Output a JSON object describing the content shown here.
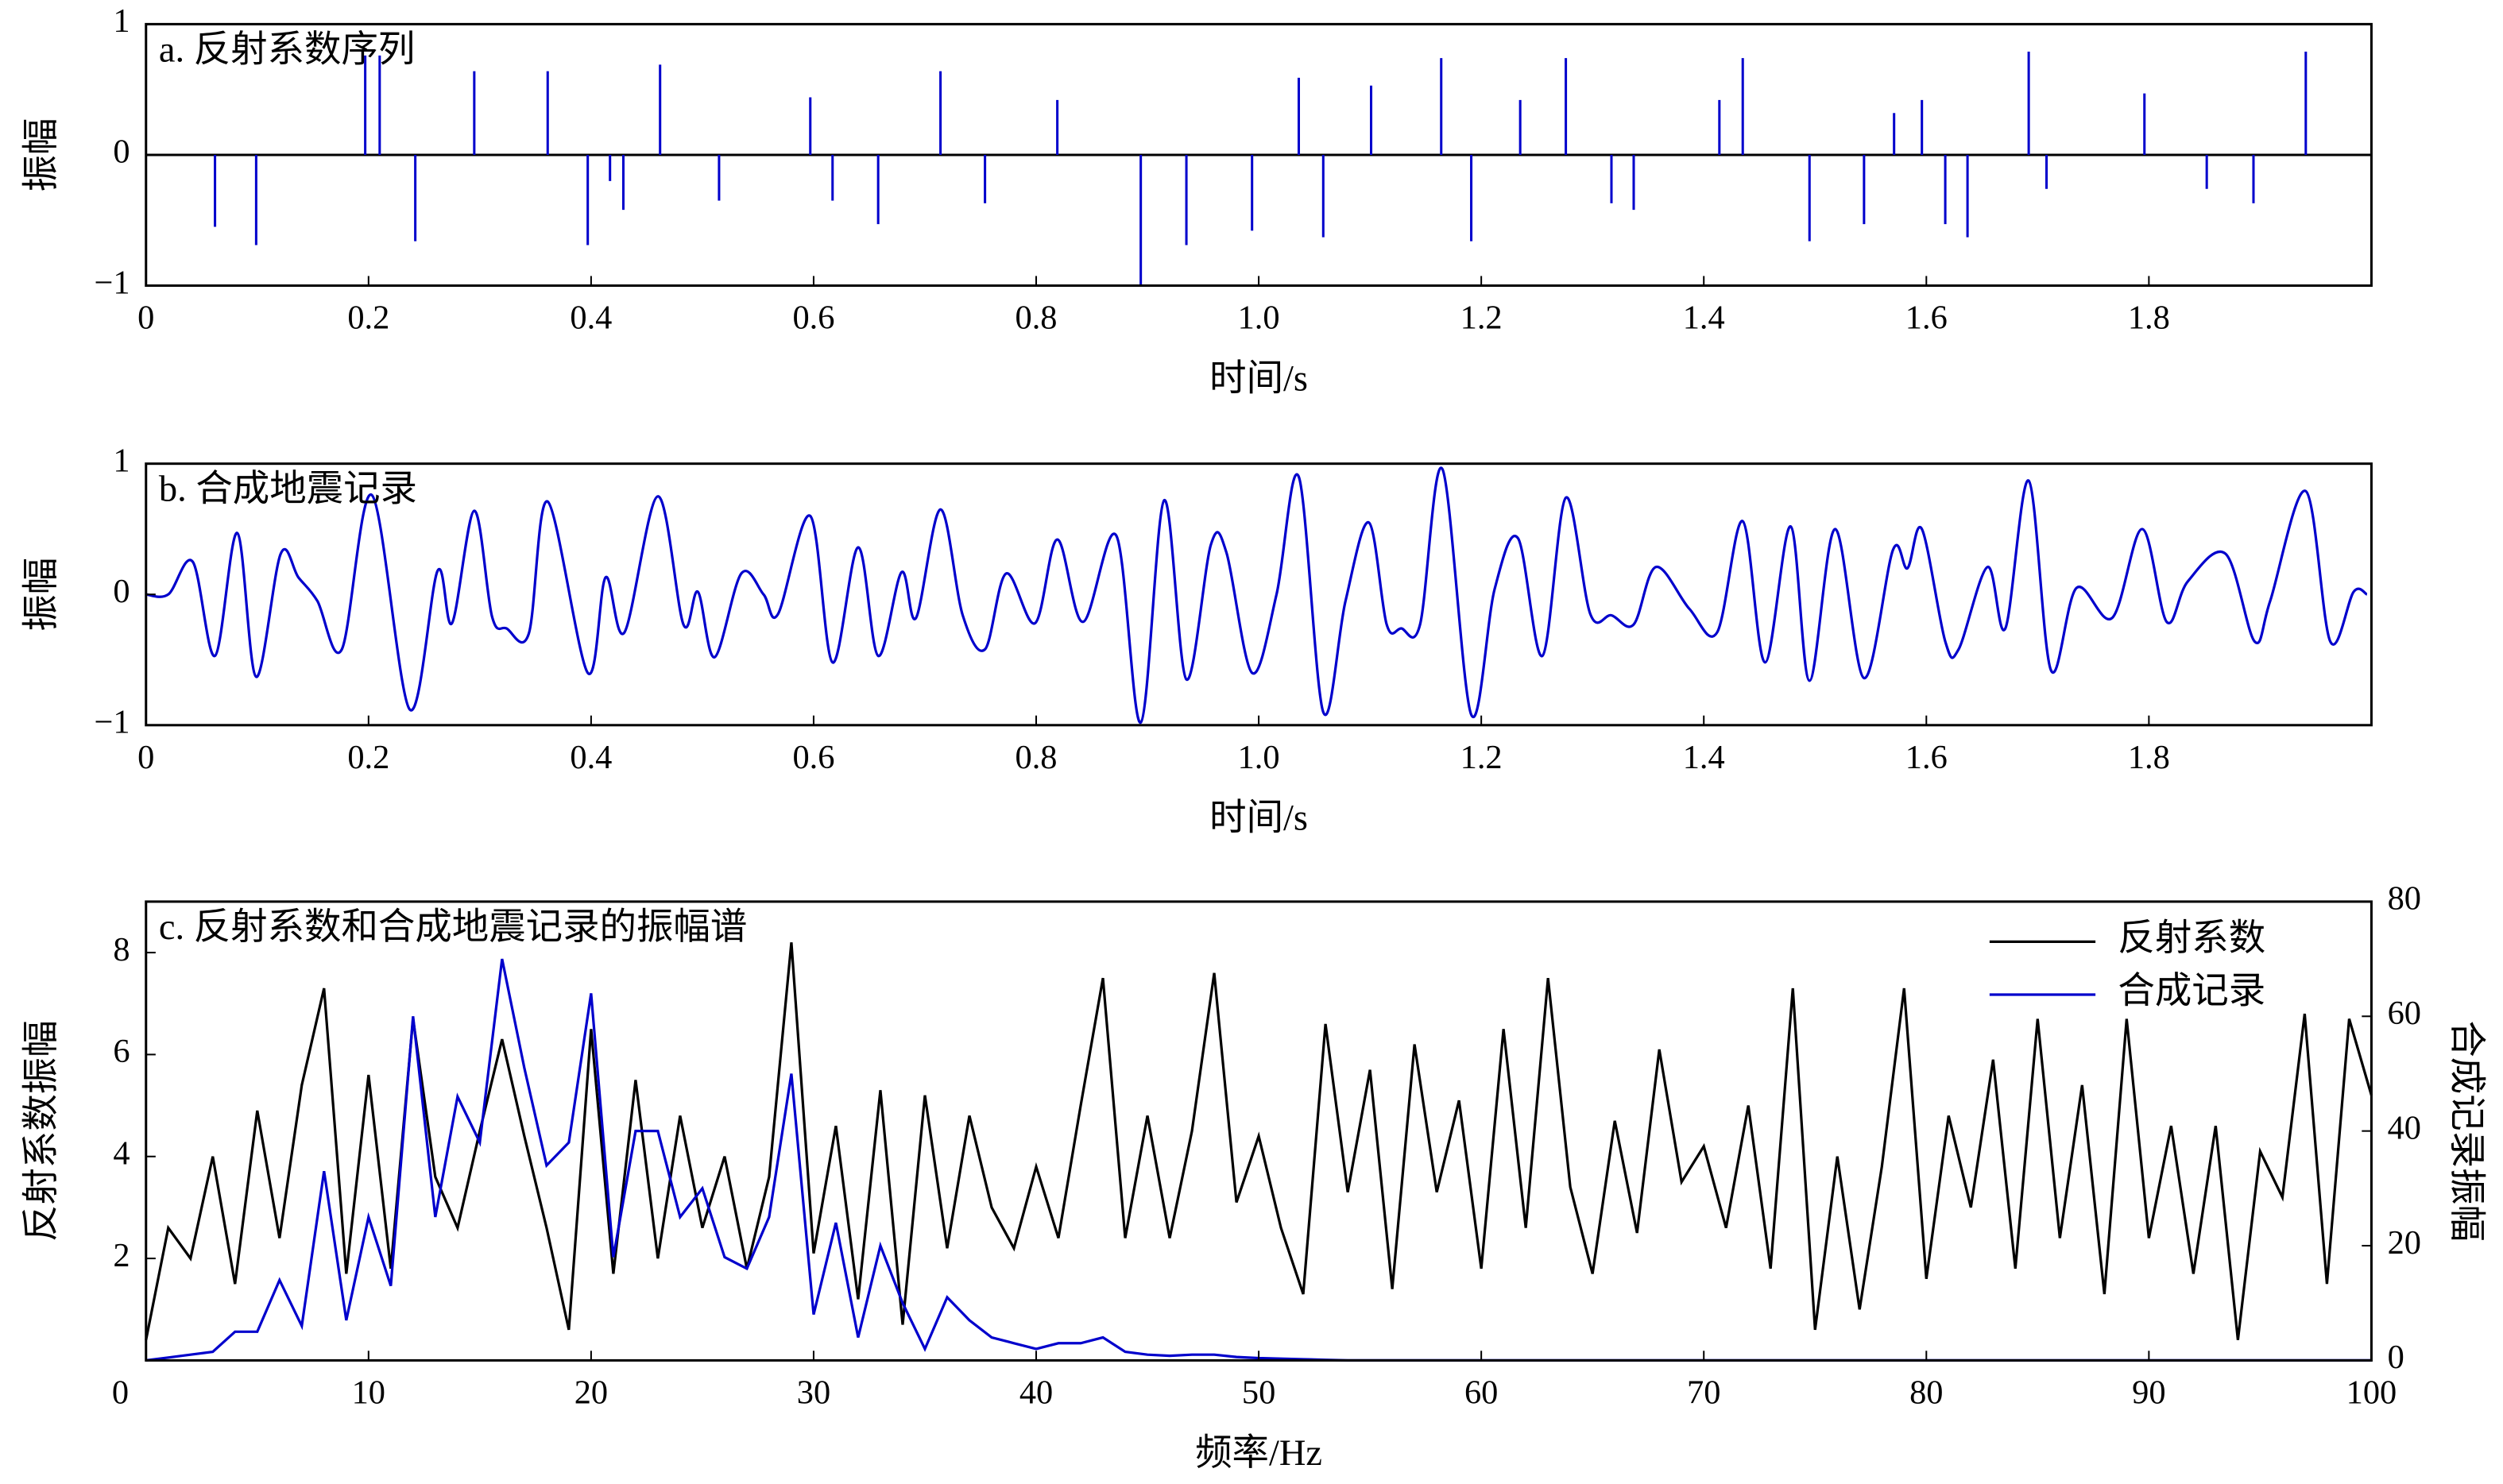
{
  "chart_data": [
    {
      "type": "stem",
      "title": "a. 反射系数序列",
      "xlabel": "时间/s",
      "ylabel": "振幅",
      "color": "#0000cc",
      "x": [
        0.062,
        0.099,
        0.197,
        0.21,
        0.242,
        0.295,
        0.361,
        0.397,
        0.417,
        0.429,
        0.462,
        0.515,
        0.597,
        0.617,
        0.658,
        0.714,
        0.754,
        0.819,
        0.894,
        0.935,
        0.994,
        1.036,
        1.058,
        1.101,
        1.164,
        1.191,
        1.235,
        1.276,
        1.317,
        1.337,
        1.414,
        1.435,
        1.495,
        1.544,
        1.571,
        1.596,
        1.617,
        1.637,
        1.692,
        1.708,
        1.796,
        1.852,
        1.894,
        1.941
      ],
      "values": [
        -0.55,
        -0.69,
        0.76,
        0.76,
        -0.66,
        0.64,
        0.64,
        -0.69,
        -0.2,
        -0.42,
        0.69,
        -0.35,
        0.44,
        -0.35,
        -0.53,
        0.64,
        -0.37,
        0.42,
        -1,
        -0.69,
        -0.58,
        0.59,
        -0.63,
        0.53,
        0.74,
        -0.66,
        0.42,
        0.74,
        -0.37,
        -0.42,
        0.42,
        0.74,
        -0.66,
        -0.53,
        0.32,
        0.42,
        -0.53,
        -0.63,
        0.79,
        -0.26,
        0.47,
        -0.26,
        -0.37,
        0.79
      ],
      "xlim": [
        0,
        2
      ],
      "xticks": [
        0,
        0.2,
        0.4,
        0.6,
        0.8,
        {
          "value": 1,
          "label": "1.0"
        },
        1.2,
        1.4,
        1.6,
        1.8
      ],
      "ylim": [
        -1,
        1
      ],
      "yticks": [
        {
          "value": -1,
          "label": "−1"
        },
        0,
        1
      ]
    },
    {
      "type": "line",
      "title": "b. 合成地震记录",
      "xlabel": "时间/s",
      "ylabel": "振幅",
      "color": "#0000cc",
      "x": [
        0,
        0.02,
        0.042,
        0.062,
        0.082,
        0.099,
        0.121,
        0.137,
        0.154,
        0.176,
        0.203,
        0.237,
        0.262,
        0.275,
        0.295,
        0.311,
        0.324,
        0.344,
        0.361,
        0.397,
        0.413,
        0.43,
        0.46,
        0.483,
        0.496,
        0.511,
        0.535,
        0.555,
        0.568,
        0.597,
        0.617,
        0.64,
        0.658,
        0.679,
        0.692,
        0.714,
        0.734,
        0.754,
        0.773,
        0.799,
        0.819,
        0.842,
        0.872,
        0.894,
        0.915,
        0.935,
        0.957,
        0.971,
        0.994,
        1.016,
        1.036,
        1.058,
        1.078,
        1.099,
        1.115,
        1.128,
        1.145,
        1.165,
        1.191,
        1.212,
        1.233,
        1.255,
        1.276,
        1.298,
        1.317,
        1.337,
        1.357,
        1.387,
        1.412,
        1.435,
        1.455,
        1.478,
        1.495,
        1.518,
        1.544,
        1.57,
        1.583,
        1.596,
        1.617,
        1.629,
        1.655,
        1.671,
        1.692,
        1.712,
        1.735,
        1.767,
        1.794,
        1.816,
        1.835,
        1.869,
        1.895,
        1.909,
        1.941,
        1.963,
        1.984,
        1.996
      ],
      "values": [
        0,
        0,
        0.25,
        -0.47,
        0.47,
        -0.63,
        0.31,
        0.13,
        -0.05,
        -0.42,
        0.76,
        -0.88,
        0.18,
        -0.22,
        0.64,
        -0.17,
        -0.26,
        -0.3,
        0.71,
        -0.6,
        0.13,
        -0.29,
        0.75,
        -0.23,
        0.02,
        -0.48,
        0.16,
        0,
        -0.15,
        0.6,
        -0.52,
        0.36,
        -0.47,
        0.17,
        -0.18,
        0.65,
        -0.16,
        -0.42,
        0.16,
        -0.22,
        0.42,
        -0.21,
        0.45,
        -0.98,
        0.72,
        -0.65,
        0.38,
        0.32,
        -0.6,
        0,
        0.9,
        -0.9,
        -0.05,
        0.55,
        -0.23,
        -0.26,
        -0.23,
        0.96,
        -0.92,
        0.04,
        0.43,
        -0.47,
        0.74,
        -0.15,
        -0.16,
        -0.23,
        0.21,
        -0.11,
        -0.29,
        0.56,
        -0.52,
        0.52,
        -0.66,
        0.5,
        -0.64,
        0.34,
        0.2,
        0.5,
        -0.36,
        -0.42,
        0.21,
        -0.26,
        0.87,
        -0.58,
        0.05,
        -0.18,
        0.5,
        -0.21,
        0.1,
        0.31,
        -0.36,
        -0.05,
        0.79,
        -0.36,
        0.02,
        0
      ],
      "xlim": [
        0,
        2
      ],
      "xticks": [
        0,
        0.2,
        0.4,
        0.6,
        0.8,
        {
          "value": 1,
          "label": "1.0"
        },
        1.2,
        1.4,
        1.6,
        1.8
      ],
      "ylim": [
        -1,
        1
      ],
      "yticks": [
        {
          "value": -1,
          "label": "−1"
        },
        0,
        1
      ]
    },
    {
      "type": "line",
      "title": "c. 反射系数和合成地震记录的振幅谱",
      "xlabel": "频率/Hz",
      "ylabel": "反射系数振幅",
      "y2label": "合成记录振幅",
      "legend": "upper right",
      "x": [
        0,
        1,
        2,
        3,
        4,
        5,
        6,
        7,
        8,
        9,
        10,
        11,
        12,
        13,
        14,
        15,
        16,
        17,
        18,
        19,
        20,
        21,
        22,
        23,
        24,
        25,
        26,
        27,
        28,
        29,
        30,
        31,
        32,
        33,
        34,
        35,
        36,
        37,
        38,
        39,
        40,
        41,
        42,
        43,
        44,
        45,
        46,
        47,
        48,
        49,
        50,
        51,
        52,
        53,
        54,
        55,
        56,
        57,
        58,
        59,
        60,
        61,
        62,
        63,
        64,
        65,
        66,
        67,
        68,
        69,
        70,
        71,
        72,
        73,
        74,
        75,
        76,
        77,
        78,
        79,
        80,
        81,
        82,
        83,
        84,
        85,
        86,
        87,
        88,
        89,
        90,
        91,
        92,
        93,
        94,
        95,
        96,
        97,
        98,
        99,
        100
      ],
      "series": [
        {
          "name": "反射系数",
          "color": "#000000",
          "values": [
            0.4,
            2.6,
            2.0,
            4.0,
            1.5,
            4.9,
            2.4,
            5.4,
            7.3,
            1.7,
            5.6,
            1.8,
            6.7,
            3.6,
            2.6,
            4.5,
            6.3,
            4.4,
            2.6,
            0.6,
            6.5,
            1.7,
            5.5,
            2.0,
            4.8,
            2.6,
            4.0,
            1.8,
            3.6,
            8.2,
            2.1,
            4.6,
            1.2,
            5.3,
            0.7,
            5.2,
            2.2,
            4.8,
            3.0,
            2.2,
            3.8,
            2.4,
            5.0,
            7.5,
            2.4,
            4.8,
            2.4,
            4.5,
            7.6,
            3.1,
            4.4,
            2.6,
            1.3,
            6.6,
            3.3,
            5.7,
            1.4,
            6.2,
            3.3,
            5.1,
            1.8,
            6.5,
            2.6,
            7.5,
            3.4,
            1.7,
            4.7,
            2.5,
            6.1,
            3.5,
            4.2,
            2.6,
            5.0,
            1.8,
            7.3,
            0.6,
            4.0,
            1.0,
            3.8,
            7.3,
            1.6,
            4.8,
            3.0,
            5.9,
            1.8,
            6.7,
            2.4,
            5.4,
            1.3,
            6.7,
            2.4,
            4.6,
            1.7,
            4.6,
            0.4,
            4.1,
            3.2,
            6.8,
            1.5,
            6.7,
            5.2
          ]
        },
        {
          "name": "合成记录",
          "color": "#0000cc",
          "axis": "y2",
          "values": [
            0,
            0.5,
            1,
            1.5,
            5,
            5,
            14,
            6,
            33,
            7,
            25,
            13,
            60,
            25,
            46,
            38,
            70,
            51,
            34,
            38,
            64,
            18,
            40,
            40,
            25,
            30,
            18,
            16,
            25,
            50,
            8,
            24,
            4,
            20,
            10,
            2,
            11,
            7,
            4,
            3,
            2,
            3,
            3,
            4,
            1.5,
            1,
            0.8,
            1,
            1,
            0.6,
            0.4,
            0.3,
            0.2,
            0.1,
            0,
            0,
            0,
            0,
            0,
            0,
            0,
            0,
            0,
            0,
            0,
            0,
            0,
            0,
            0,
            0,
            0,
            0,
            0,
            0,
            0,
            0,
            0,
            0,
            0,
            0,
            0,
            0,
            0,
            0,
            0,
            0,
            0,
            0,
            0,
            0,
            0,
            0,
            0,
            0,
            0,
            0,
            0,
            0,
            0,
            0,
            0
          ]
        }
      ],
      "xlim": [
        0,
        100
      ],
      "xticks": [
        0,
        10,
        20,
        30,
        40,
        50,
        60,
        70,
        80,
        90,
        100
      ],
      "ylim": [
        0,
        9
      ],
      "yticks": [
        2,
        4,
        6,
        8
      ],
      "y2lim": [
        0,
        80
      ],
      "y2ticks": [
        0,
        20,
        40,
        60,
        80
      ]
    }
  ]
}
